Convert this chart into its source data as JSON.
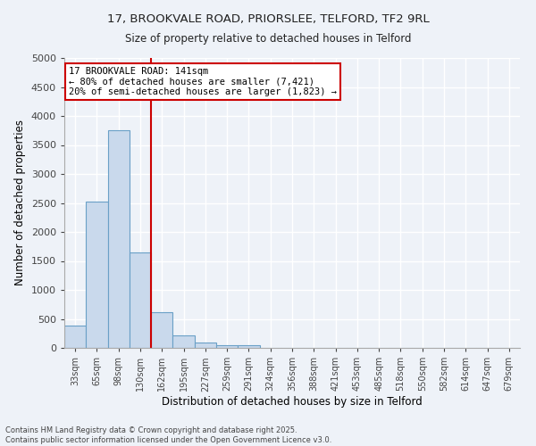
{
  "title1": "17, BROOKVALE ROAD, PRIORSLEE, TELFORD, TF2 9RL",
  "title2": "Size of property relative to detached houses in Telford",
  "xlabel": "Distribution of detached houses by size in Telford",
  "ylabel": "Number of detached properties",
  "bar_color": "#c9d9ec",
  "bar_edge_color": "#6aa0c7",
  "bg_color": "#eef2f8",
  "grid_color": "#ffffff",
  "categories": [
    "33sqm",
    "65sqm",
    "98sqm",
    "130sqm",
    "162sqm",
    "195sqm",
    "227sqm",
    "259sqm",
    "291sqm",
    "324sqm",
    "356sqm",
    "388sqm",
    "421sqm",
    "453sqm",
    "485sqm",
    "518sqm",
    "550sqm",
    "582sqm",
    "614sqm",
    "647sqm",
    "679sqm"
  ],
  "values": [
    380,
    2530,
    3760,
    1650,
    620,
    220,
    100,
    45,
    45,
    0,
    0,
    0,
    0,
    0,
    0,
    0,
    0,
    0,
    0,
    0,
    0
  ],
  "vline_x": 3.5,
  "vline_color": "#cc0000",
  "annotation_text": "17 BROOKVALE ROAD: 141sqm\n← 80% of detached houses are smaller (7,421)\n20% of semi-detached houses are larger (1,823) →",
  "annotation_box_color": "#ffffff",
  "annotation_box_edge": "#cc0000",
  "ylim": [
    0,
    5000
  ],
  "yticks": [
    0,
    500,
    1000,
    1500,
    2000,
    2500,
    3000,
    3500,
    4000,
    4500,
    5000
  ],
  "footer1": "Contains HM Land Registry data © Crown copyright and database right 2025.",
  "footer2": "Contains public sector information licensed under the Open Government Licence v3.0."
}
